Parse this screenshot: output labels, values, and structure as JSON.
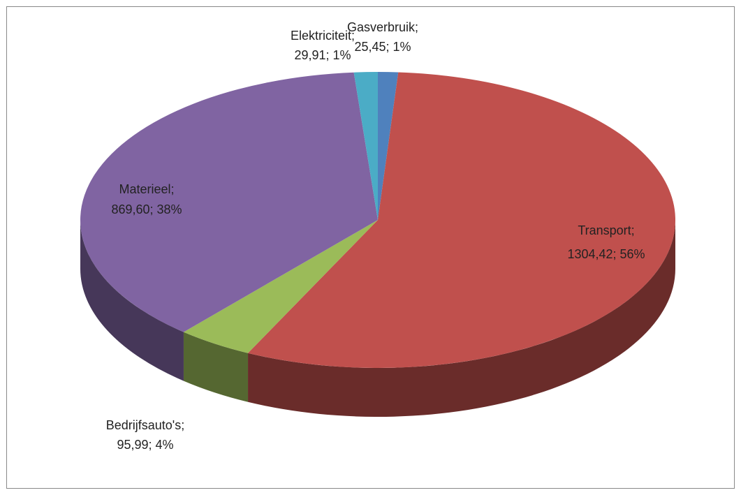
{
  "chart_data": {
    "type": "pie3d",
    "categories": [
      "Gasverbruik;",
      "Transport;",
      "Bedrijfsauto's;",
      "Materieel;",
      "Elektriciteit;"
    ],
    "values": [
      25.45,
      1304.42,
      95.99,
      869.6,
      29.91
    ],
    "value_labels": [
      "25,45; 1%",
      "1304,42; 56%",
      "95,99; 4%",
      "869,60; 38%",
      "29,91; 1%"
    ],
    "colors": [
      "#4f81bd",
      "#c0504d",
      "#9bbb59",
      "#8064a2",
      "#4bacc6"
    ]
  }
}
